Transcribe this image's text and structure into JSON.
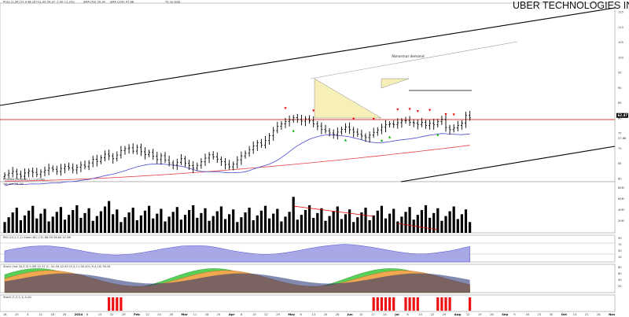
{
  "title": "UBER TECHNOLOGIES INC.",
  "legend": {
    "price": "Price (1.00) 57.9 48.16 F1L.09 54.37 -1.00 (-2.2%)",
    "sma50": "SMA (50) 50.34",
    "sma200": "SMA (200) 47.88",
    "extra": "TS no data"
  },
  "annotation": "Abnormal demand",
  "colors": {
    "background": "#ffffff",
    "price_bar": "#000000",
    "sma50": "#4a4ad0",
    "sma200": "#e04040",
    "horizontal_level": "#cc0000",
    "triangle_fill": "#f6f0b8",
    "rsi_fill": "#a8a8e8",
    "stoch_green": "#58d058",
    "stoch_orange": "#f0a850",
    "stoch_navy": "#1c2a70",
    "signal_red": "#ee1111",
    "price_box": "#000000"
  },
  "panels": {
    "volume_label": "PriceBar(Volume) 1 / 1 of Day",
    "volume_sub": "Volume 28.1M",
    "rsi_label": "RSI (14,1,2,1) Green BG (70) 68.09 58.64 47.68",
    "stoch_label": "Stoch (Ind.34,3,3) 0.9M 52.37 (I) -54.94 42.63 (9,3,1) (30.40) (9,4,10) 50.61",
    "signal_label": "Stoch (1,5,1,1) 0.00"
  },
  "chart_data": [
    {
      "type": "bar",
      "panel": "price",
      "title": "UBER TECHNOLOGIES INC.",
      "scale": "linear",
      "ylim": [
        59,
        118
      ],
      "ylabel": "",
      "yticks": [
        60,
        65,
        70,
        75,
        80,
        85,
        90,
        95,
        100,
        105,
        110,
        115
      ],
      "last_price": "62.47",
      "level_label": "57.88",
      "series": [
        {
          "name": "Price",
          "kind": "ohlc",
          "x_start": "2023-12-12",
          "closes": [
            61.2,
            61.8,
            62.4,
            61.5,
            60.8,
            61.9,
            62.5,
            62.1,
            61.4,
            62.2,
            62.8,
            63.5,
            63.1,
            62.4,
            63.4,
            64.1,
            63.6,
            62.9,
            63.8,
            64.5,
            64.0,
            65.2,
            66.4,
            65.7,
            66.9,
            68.1,
            67.5,
            66.6,
            67.8,
            69.3,
            69.9,
            70.2,
            69.1,
            70.4,
            68.9,
            68.0,
            68.7,
            67.4,
            66.3,
            67.6,
            66.1,
            65.2,
            64.5,
            65.4,
            66.6,
            65.1,
            64.3,
            63.5,
            64.4,
            65.6,
            66.8,
            67.9,
            67.2,
            66.4,
            65.6,
            64.7,
            63.9,
            64.8,
            66.2,
            67.5,
            68.4,
            69.6,
            70.8,
            71.9,
            71.1,
            72.6,
            74.2,
            75.9,
            77.3,
            78.1,
            78.9,
            79.4,
            80.2,
            79.6,
            79.0,
            79.8,
            79.1,
            78.1,
            77.4,
            76.3,
            75.8,
            75.1,
            74.6,
            75.4,
            76.3,
            77.1,
            76.2,
            75.4,
            74.7,
            74.1,
            73.6,
            74.4,
            75.3,
            76.1,
            77.0,
            77.8,
            78.1,
            77.9,
            78.5,
            79.1,
            79.2,
            78.6,
            78.4,
            77.9,
            78.6,
            77.6,
            78.3,
            77.8,
            78.9,
            79.6,
            76.9,
            76.2,
            76.8,
            77.6,
            78.4,
            80.9,
            80.1
          ]
        },
        {
          "name": "SMA (50)",
          "kind": "line"
        },
        {
          "name": "SMA (200)",
          "kind": "line"
        }
      ],
      "arrows": {
        "up": 5,
        "down": 10
      }
    },
    {
      "type": "bar",
      "panel": "volume",
      "ylim": [
        0,
        80
      ],
      "yticks": [
        "80M",
        "60M",
        "40M",
        "20M"
      ],
      "annotations": "volume bars with red trendlines over May–Jul and arrow signals"
    },
    {
      "type": "area",
      "panel": "rsi",
      "name": "RSI (14)",
      "ylim": [
        0,
        100
      ],
      "yticks": [
        90,
        70,
        30,
        10
      ],
      "last_value": "58.64"
    },
    {
      "type": "area",
      "panel": "stochastic",
      "ylim": [
        0,
        100
      ],
      "yticks": [
        80,
        60,
        40,
        20
      ],
      "series": [
        {
          "name": "Stoch %K"
        },
        {
          "name": "Stoch %D"
        }
      ]
    },
    {
      "type": "bar",
      "panel": "signal",
      "ylim": [
        0,
        1
      ],
      "description": "red signal bars",
      "signal_groups": [
        4,
        6,
        4,
        4,
        1
      ]
    }
  ],
  "x_axis": {
    "labels": [
      "18",
      "25",
      "4",
      "11",
      "18",
      "26",
      "2024",
      "8",
      "15",
      "22",
      "29",
      "Feb",
      "12",
      "20",
      "26",
      "Mar",
      "11",
      "18",
      "25",
      "Apr",
      "8",
      "15",
      "22",
      "29",
      "May",
      "6",
      "13",
      "20",
      "28",
      "Jun",
      "10",
      "17",
      "24",
      "Jul",
      "8",
      "15",
      "22",
      "29",
      "Aug",
      "12",
      "19",
      "26",
      "Sep",
      "9",
      "16",
      "23",
      "30",
      "Oct",
      "14",
      "21",
      "28",
      "Nov"
    ]
  }
}
